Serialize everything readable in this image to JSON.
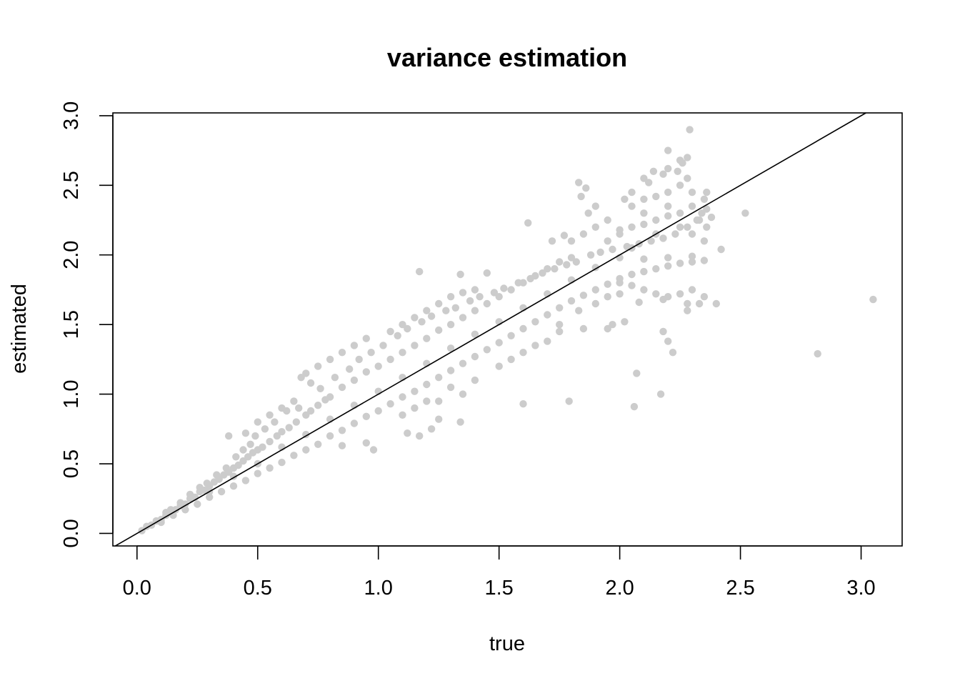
{
  "chart_data": {
    "type": "scatter",
    "title": "variance estimation",
    "xlabel": "true",
    "ylabel": "estimated",
    "xlim": [
      -0.1,
      3.17
    ],
    "ylim": [
      -0.09,
      3.02
    ],
    "xticks": [
      0.0,
      0.5,
      1.0,
      1.5,
      2.0,
      2.5,
      3.0
    ],
    "yticks": [
      0.0,
      0.5,
      1.0,
      1.5,
      2.0,
      2.5,
      3.0
    ],
    "xtick_labels": [
      "0.0",
      "0.5",
      "1.0",
      "1.5",
      "2.0",
      "2.5",
      "3.0"
    ],
    "ytick_labels": [
      "0.0",
      "0.5",
      "1.0",
      "1.5",
      "2.0",
      "2.5",
      "3.0"
    ],
    "point_color": "#cccccc",
    "line_color": "#000000",
    "reference_line": {
      "intercept": 0,
      "slope": 1
    },
    "grid": false,
    "series": [
      {
        "name": "points",
        "points": [
          [
            0.02,
            0.02
          ],
          [
            0.04,
            0.05
          ],
          [
            0.06,
            0.06
          ],
          [
            0.08,
            0.09
          ],
          [
            0.1,
            0.1
          ],
          [
            0.12,
            0.13
          ],
          [
            0.14,
            0.15
          ],
          [
            0.16,
            0.17
          ],
          [
            0.18,
            0.2
          ],
          [
            0.2,
            0.21
          ],
          [
            0.22,
            0.25
          ],
          [
            0.24,
            0.26
          ],
          [
            0.26,
            0.3
          ],
          [
            0.28,
            0.31
          ],
          [
            0.3,
            0.34
          ],
          [
            0.32,
            0.37
          ],
          [
            0.34,
            0.39
          ],
          [
            0.36,
            0.42
          ],
          [
            0.38,
            0.44
          ],
          [
            0.4,
            0.47
          ],
          [
            0.42,
            0.49
          ],
          [
            0.44,
            0.52
          ],
          [
            0.46,
            0.55
          ],
          [
            0.48,
            0.58
          ],
          [
            0.5,
            0.6
          ],
          [
            0.52,
            0.62
          ],
          [
            0.55,
            0.66
          ],
          [
            0.58,
            0.7
          ],
          [
            0.6,
            0.73
          ],
          [
            0.63,
            0.76
          ],
          [
            0.66,
            0.8
          ],
          [
            0.7,
            0.85
          ],
          [
            0.72,
            0.88
          ],
          [
            0.75,
            0.92
          ],
          [
            0.78,
            0.96
          ],
          [
            0.8,
            0.98
          ],
          [
            0.85,
            1.05
          ],
          [
            0.9,
            1.1
          ],
          [
            0.95,
            1.16
          ],
          [
            1.0,
            1.2
          ],
          [
            1.05,
            1.25
          ],
          [
            1.1,
            1.3
          ],
          [
            1.15,
            1.35
          ],
          [
            1.2,
            1.4
          ],
          [
            1.25,
            1.46
          ],
          [
            1.3,
            1.5
          ],
          [
            1.35,
            1.55
          ],
          [
            1.4,
            1.6
          ],
          [
            1.45,
            1.65
          ],
          [
            1.5,
            1.7
          ],
          [
            1.55,
            1.75
          ],
          [
            1.6,
            1.8
          ],
          [
            1.65,
            1.85
          ],
          [
            1.7,
            1.9
          ],
          [
            1.75,
            1.95
          ],
          [
            1.8,
            1.98
          ],
          [
            0.1,
            0.08
          ],
          [
            0.15,
            0.13
          ],
          [
            0.2,
            0.17
          ],
          [
            0.25,
            0.21
          ],
          [
            0.3,
            0.26
          ],
          [
            0.35,
            0.3
          ],
          [
            0.4,
            0.34
          ],
          [
            0.45,
            0.38
          ],
          [
            0.5,
            0.43
          ],
          [
            0.55,
            0.47
          ],
          [
            0.6,
            0.51
          ],
          [
            0.65,
            0.56
          ],
          [
            0.7,
            0.6
          ],
          [
            0.75,
            0.64
          ],
          [
            0.8,
            0.7
          ],
          [
            0.85,
            0.74
          ],
          [
            0.9,
            0.79
          ],
          [
            0.95,
            0.84
          ],
          [
            1.0,
            0.88
          ],
          [
            1.05,
            0.93
          ],
          [
            1.1,
            0.98
          ],
          [
            1.15,
            1.02
          ],
          [
            1.2,
            1.07
          ],
          [
            1.25,
            1.12
          ],
          [
            1.3,
            1.17
          ],
          [
            1.35,
            1.22
          ],
          [
            1.4,
            1.27
          ],
          [
            1.45,
            1.32
          ],
          [
            1.5,
            1.37
          ],
          [
            1.55,
            1.42
          ],
          [
            1.6,
            1.47
          ],
          [
            1.65,
            1.52
          ],
          [
            1.7,
            1.57
          ],
          [
            1.75,
            1.62
          ],
          [
            1.8,
            1.67
          ],
          [
            1.85,
            1.71
          ],
          [
            1.9,
            1.75
          ],
          [
            1.95,
            1.79
          ],
          [
            2.0,
            1.83
          ],
          [
            2.05,
            1.86
          ],
          [
            2.1,
            1.88
          ],
          [
            2.15,
            1.9
          ],
          [
            2.2,
            1.92
          ],
          [
            2.25,
            1.94
          ],
          [
            2.3,
            1.95
          ],
          [
            2.35,
            1.96
          ],
          [
            0.3,
            0.3
          ],
          [
            0.4,
            0.41
          ],
          [
            0.5,
            0.5
          ],
          [
            0.6,
            0.62
          ],
          [
            0.7,
            0.71
          ],
          [
            0.8,
            0.82
          ],
          [
            0.9,
            0.92
          ],
          [
            1.0,
            1.02
          ],
          [
            1.1,
            1.12
          ],
          [
            1.2,
            1.22
          ],
          [
            1.3,
            1.33
          ],
          [
            1.4,
            1.43
          ],
          [
            1.5,
            1.52
          ],
          [
            1.6,
            1.62
          ],
          [
            1.7,
            1.72
          ],
          [
            1.8,
            1.82
          ],
          [
            1.9,
            1.91
          ],
          [
            2.0,
            1.98
          ],
          [
            2.1,
            1.97
          ],
          [
            2.2,
            1.98
          ],
          [
            2.3,
            1.99
          ],
          [
            1.8,
            2.1
          ],
          [
            1.85,
            2.15
          ],
          [
            1.9,
            2.2
          ],
          [
            1.95,
            2.25
          ],
          [
            2.0,
            2.18
          ],
          [
            2.05,
            2.2
          ],
          [
            2.1,
            2.22
          ],
          [
            2.15,
            2.25
          ],
          [
            2.2,
            2.28
          ],
          [
            2.25,
            2.3
          ],
          [
            2.3,
            2.35
          ],
          [
            2.05,
            2.35
          ],
          [
            2.1,
            2.4
          ],
          [
            2.15,
            2.42
          ],
          [
            2.2,
            2.45
          ],
          [
            2.25,
            2.5
          ],
          [
            2.3,
            2.45
          ],
          [
            2.35,
            2.4
          ],
          [
            2.1,
            2.3
          ],
          [
            2.2,
            2.35
          ],
          [
            2.28,
            2.55
          ],
          [
            2.32,
            2.25
          ],
          [
            2.34,
            2.3
          ],
          [
            2.36,
            2.2
          ],
          [
            2.02,
            2.4
          ],
          [
            2.12,
            2.52
          ],
          [
            2.18,
            2.58
          ],
          [
            2.24,
            2.6
          ],
          [
            2.26,
            2.66
          ],
          [
            2.28,
            2.7
          ],
          [
            2.2,
            2.62
          ],
          [
            2.14,
            2.6
          ],
          [
            1.95,
            2.1
          ],
          [
            2.0,
            2.15
          ],
          [
            2.05,
            2.05
          ],
          [
            2.15,
            2.15
          ],
          [
            2.25,
            2.2
          ],
          [
            2.3,
            2.15
          ],
          [
            2.35,
            2.1
          ],
          [
            2.0,
            1.8
          ],
          [
            2.05,
            1.78
          ],
          [
            2.1,
            1.75
          ],
          [
            2.15,
            1.72
          ],
          [
            2.2,
            1.7
          ],
          [
            2.25,
            1.72
          ],
          [
            2.3,
            1.75
          ],
          [
            2.35,
            1.7
          ],
          [
            1.9,
            1.65
          ],
          [
            1.95,
            1.7
          ],
          [
            2.0,
            1.72
          ],
          [
            2.08,
            1.66
          ],
          [
            2.18,
            1.68
          ],
          [
            2.28,
            1.65
          ],
          [
            1.3,
            1.7
          ],
          [
            1.35,
            1.73
          ],
          [
            1.4,
            1.75
          ],
          [
            1.25,
            1.65
          ],
          [
            1.2,
            1.6
          ],
          [
            1.15,
            1.55
          ],
          [
            1.1,
            1.5
          ],
          [
            1.05,
            1.45
          ],
          [
            0.95,
            1.4
          ],
          [
            0.9,
            1.35
          ],
          [
            0.85,
            1.3
          ],
          [
            0.8,
            1.25
          ],
          [
            0.75,
            1.2
          ],
          [
            0.7,
            1.15
          ],
          [
            0.6,
            0.9
          ],
          [
            0.65,
            0.95
          ],
          [
            0.55,
            0.85
          ],
          [
            0.5,
            0.8
          ],
          [
            0.45,
            0.72
          ],
          [
            1.4,
            1.1
          ],
          [
            1.3,
            1.05
          ],
          [
            1.2,
            0.95
          ],
          [
            1.15,
            0.9
          ],
          [
            1.1,
            0.85
          ],
          [
            1.25,
            0.95
          ],
          [
            1.35,
            1.0
          ],
          [
            1.5,
            1.2
          ],
          [
            1.55,
            1.25
          ],
          [
            1.6,
            1.3
          ],
          [
            1.65,
            1.35
          ],
          [
            1.7,
            1.38
          ],
          [
            1.75,
            1.45
          ],
          [
            1.17,
            1.88
          ],
          [
            1.34,
            1.86
          ],
          [
            1.45,
            1.87
          ],
          [
            1.62,
            2.23
          ],
          [
            1.72,
            2.1
          ],
          [
            1.77,
            2.14
          ],
          [
            1.84,
            2.42
          ],
          [
            1.83,
            2.52
          ],
          [
            1.87,
            2.3
          ],
          [
            1.9,
            2.35
          ],
          [
            1.86,
            2.48
          ],
          [
            2.05,
            2.45
          ],
          [
            2.1,
            2.55
          ],
          [
            2.2,
            2.75
          ],
          [
            2.25,
            2.68
          ],
          [
            2.29,
            2.9
          ],
          [
            2.42,
            2.04
          ],
          [
            2.52,
            2.3
          ],
          [
            2.38,
            2.27
          ],
          [
            2.33,
            1.65
          ],
          [
            2.4,
            1.65
          ],
          [
            2.28,
            1.6
          ],
          [
            2.18,
            1.45
          ],
          [
            2.2,
            1.38
          ],
          [
            2.22,
            1.3
          ],
          [
            2.07,
            1.15
          ],
          [
            2.17,
            1.0
          ],
          [
            2.06,
            0.91
          ],
          [
            1.79,
            0.95
          ],
          [
            1.6,
            0.93
          ],
          [
            1.34,
            0.8
          ],
          [
            1.25,
            0.82
          ],
          [
            1.22,
            0.75
          ],
          [
            1.17,
            0.7
          ],
          [
            1.12,
            0.72
          ],
          [
            0.98,
            0.6
          ],
          [
            0.95,
            0.65
          ],
          [
            0.85,
            0.63
          ],
          [
            1.83,
            1.6
          ],
          [
            1.75,
            1.5
          ],
          [
            1.95,
            1.47
          ],
          [
            1.97,
            1.5
          ],
          [
            2.02,
            1.52
          ],
          [
            1.85,
            1.47
          ],
          [
            3.05,
            1.68
          ],
          [
            2.82,
            1.29
          ],
          [
            0.12,
            0.15
          ],
          [
            0.14,
            0.17
          ],
          [
            0.18,
            0.22
          ],
          [
            0.22,
            0.28
          ],
          [
            0.26,
            0.33
          ],
          [
            0.29,
            0.36
          ],
          [
            0.33,
            0.42
          ],
          [
            0.37,
            0.47
          ],
          [
            0.38,
            0.7
          ],
          [
            0.41,
            0.55
          ],
          [
            0.44,
            0.6
          ],
          [
            0.47,
            0.64
          ],
          [
            0.49,
            0.7
          ],
          [
            0.53,
            0.75
          ],
          [
            0.57,
            0.8
          ],
          [
            0.62,
            0.88
          ],
          [
            0.67,
            0.9
          ],
          [
            0.68,
            1.12
          ],
          [
            0.72,
            1.08
          ],
          [
            0.76,
            1.04
          ],
          [
            0.82,
            1.12
          ],
          [
            0.88,
            1.18
          ],
          [
            0.92,
            1.25
          ],
          [
            0.97,
            1.3
          ],
          [
            1.02,
            1.35
          ],
          [
            1.08,
            1.42
          ],
          [
            1.12,
            1.47
          ],
          [
            1.18,
            1.52
          ],
          [
            1.22,
            1.56
          ],
          [
            1.28,
            1.6
          ],
          [
            1.32,
            1.62
          ],
          [
            1.38,
            1.67
          ],
          [
            1.42,
            1.7
          ],
          [
            1.48,
            1.73
          ],
          [
            1.52,
            1.76
          ],
          [
            1.58,
            1.8
          ],
          [
            1.63,
            1.83
          ],
          [
            1.68,
            1.87
          ],
          [
            1.73,
            1.9
          ],
          [
            1.78,
            1.93
          ],
          [
            1.82,
            1.95
          ],
          [
            1.88,
            2.0
          ],
          [
            1.92,
            2.02
          ],
          [
            1.97,
            2.04
          ],
          [
            2.03,
            2.06
          ],
          [
            2.08,
            2.08
          ],
          [
            2.13,
            2.1
          ],
          [
            2.18,
            2.12
          ],
          [
            2.23,
            2.15
          ],
          [
            2.28,
            2.2
          ],
          [
            2.33,
            2.25
          ],
          [
            2.36,
            2.33
          ],
          [
            2.36,
            2.45
          ]
        ]
      }
    ]
  }
}
